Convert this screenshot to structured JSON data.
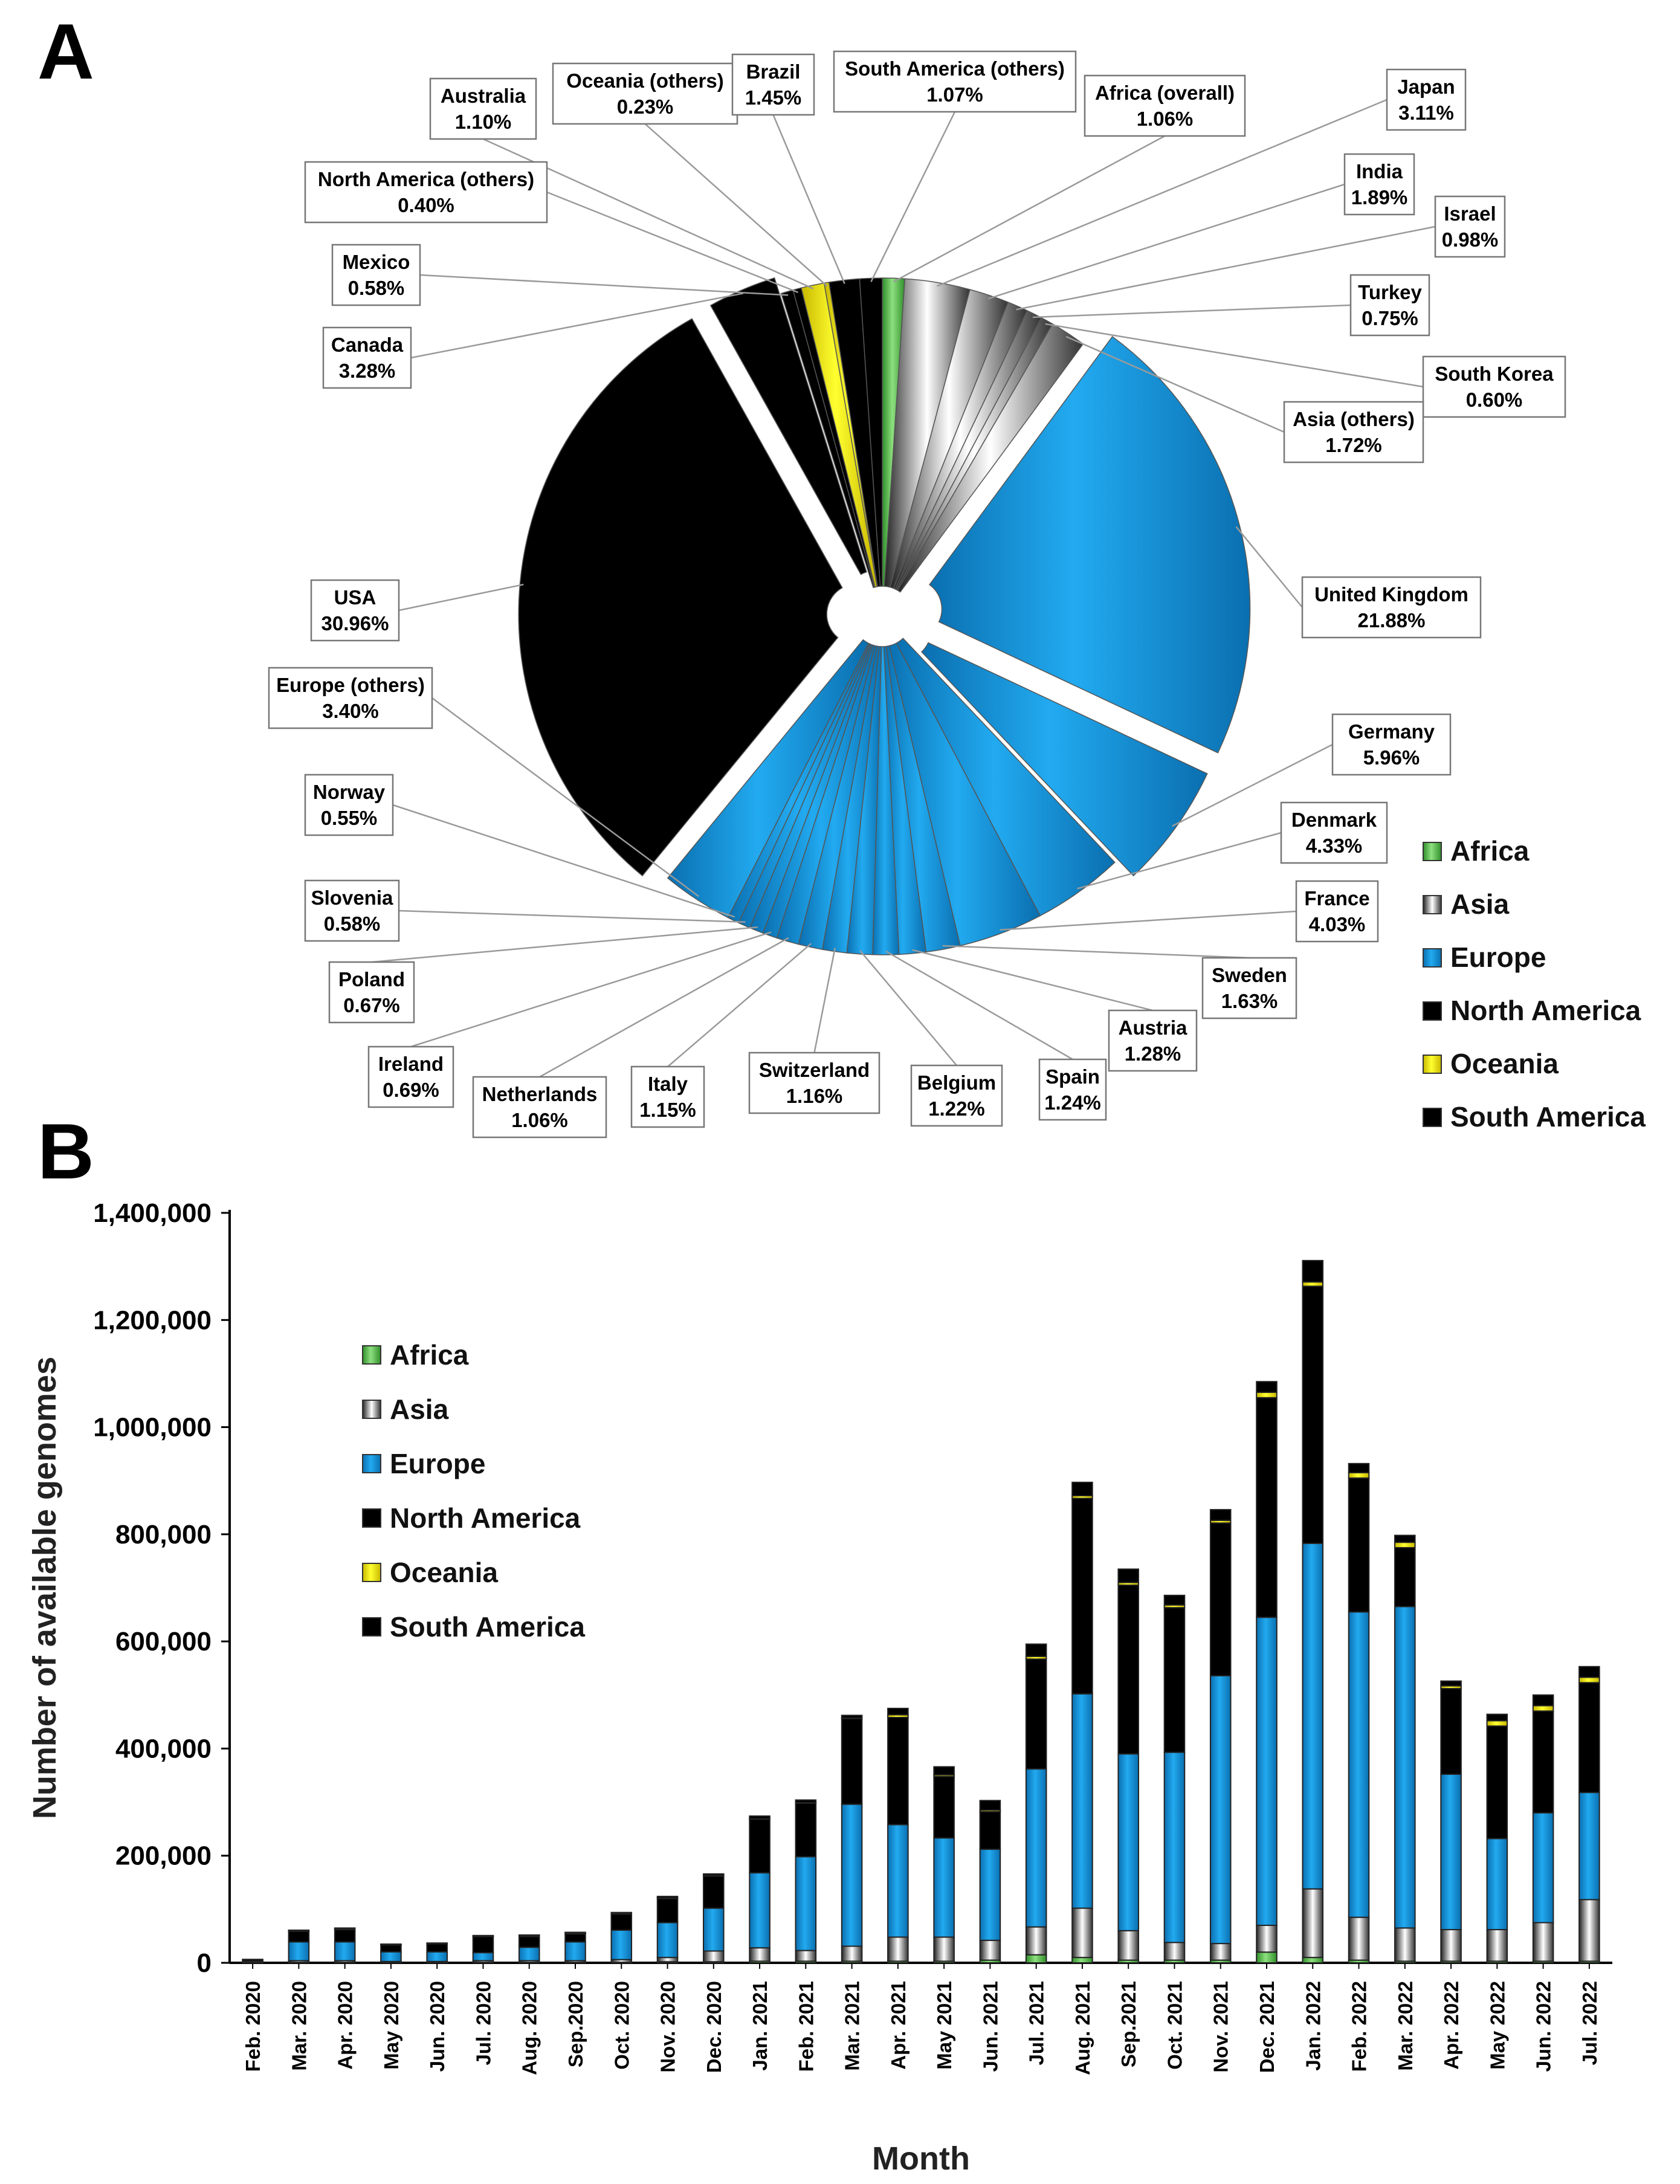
{
  "panels": {
    "a": "A",
    "b": "B"
  },
  "colors": {
    "Africa": "#55b848",
    "Asia": "#d0d0d0",
    "Europe": "#0b8fd8",
    "North America": "#e00000",
    "Oceania": "#f4ee00",
    "South America": "#f0a000"
  },
  "chart_data": [
    {
      "type": "pie",
      "title": "",
      "unit": "%",
      "slices": [
        {
          "label": "Africa (overall)",
          "value": 1.06,
          "region": "Africa"
        },
        {
          "label": "Japan",
          "value": 3.11,
          "region": "Asia"
        },
        {
          "label": "India",
          "value": 1.89,
          "region": "Asia"
        },
        {
          "label": "Israel",
          "value": 0.98,
          "region": "Asia"
        },
        {
          "label": "Turkey",
          "value": 0.75,
          "region": "Asia"
        },
        {
          "label": "South Korea",
          "value": 0.6,
          "region": "Asia"
        },
        {
          "label": "Asia (others)",
          "value": 1.72,
          "region": "Asia"
        },
        {
          "label": "United Kingdom",
          "value": 21.88,
          "region": "Europe"
        },
        {
          "label": "Germany",
          "value": 5.96,
          "region": "Europe"
        },
        {
          "label": "Denmark",
          "value": 4.33,
          "region": "Europe"
        },
        {
          "label": "France",
          "value": 4.03,
          "region": "Europe"
        },
        {
          "label": "Sweden",
          "value": 1.63,
          "region": "Europe"
        },
        {
          "label": "Austria",
          "value": 1.28,
          "region": "Europe"
        },
        {
          "label": "Spain",
          "value": 1.24,
          "region": "Europe"
        },
        {
          "label": "Belgium",
          "value": 1.22,
          "region": "Europe"
        },
        {
          "label": "Switzerland",
          "value": 1.16,
          "region": "Europe"
        },
        {
          "label": "Italy",
          "value": 1.15,
          "region": "Europe"
        },
        {
          "label": "Netherlands",
          "value": 1.06,
          "region": "Europe"
        },
        {
          "label": "Ireland",
          "value": 0.69,
          "region": "Europe"
        },
        {
          "label": "Poland",
          "value": 0.67,
          "region": "Europe"
        },
        {
          "label": "Slovenia",
          "value": 0.58,
          "region": "Europe"
        },
        {
          "label": "Norway",
          "value": 0.55,
          "region": "Europe"
        },
        {
          "label": "Europe (others)",
          "value": 3.4,
          "region": "Europe"
        },
        {
          "label": "USA",
          "value": 30.96,
          "region": "North America"
        },
        {
          "label": "Canada",
          "value": 3.28,
          "region": "North America"
        },
        {
          "label": "Mexico",
          "value": 0.58,
          "region": "North America"
        },
        {
          "label": "North America (others)",
          "value": 0.4,
          "region": "North America"
        },
        {
          "label": "Australia",
          "value": 1.1,
          "region": "Oceania"
        },
        {
          "label": "Oceania (others)",
          "value": 0.23,
          "region": "Oceania"
        },
        {
          "label": "Brazil",
          "value": 1.45,
          "region": "South America"
        },
        {
          "label": "South America (others)",
          "value": 1.07,
          "region": "South America"
        }
      ],
      "legend": [
        "Africa",
        "Asia",
        "Europe",
        "North America",
        "Oceania",
        "South America"
      ]
    },
    {
      "type": "bar",
      "stacked": true,
      "xlabel": "Month",
      "ylabel": "Number of available genomes",
      "ylim": [
        0,
        1400000
      ],
      "yticks": [
        0,
        200000,
        400000,
        600000,
        800000,
        1000000,
        1200000,
        1400000
      ],
      "ytick_labels": [
        "0",
        "200,000",
        "400,000",
        "600,000",
        "800,000",
        "1,000,000",
        "1,200,000",
        "1,400,000"
      ],
      "categories": [
        "Feb. 2020",
        "Mar. 2020",
        "Apr. 2020",
        "May 2020",
        "Jun. 2020",
        "Jul. 2020",
        "Aug. 2020",
        "Sep.2020",
        "Oct. 2020",
        "Nov. 2020",
        "Dec. 2020",
        "Jan. 2021",
        "Feb. 2021",
        "Mar. 2021",
        "Apr. 2021",
        "May 2021",
        "Jun. 2021",
        "Jul. 2021",
        "Aug. 2021",
        "Sep.2021",
        "Oct. 2021",
        "Nov. 2021",
        "Dec. 2021",
        "Jan. 2022",
        "Feb. 2022",
        "Mar. 2022",
        "Apr. 2022",
        "May 2022",
        "Jun. 2022",
        "Jul. 2022"
      ],
      "series": [
        {
          "name": "Africa",
          "values": [
            200,
            1000,
            1000,
            500,
            500,
            1000,
            1000,
            1000,
            1000,
            2000,
            2000,
            3000,
            3000,
            3000,
            3000,
            3000,
            5000,
            15000,
            10000,
            5000,
            5000,
            5000,
            20000,
            10000,
            5000,
            3000,
            3000,
            3000,
            3000,
            3000
          ]
        },
        {
          "name": "Asia",
          "values": [
            2000,
            3000,
            3000,
            2000,
            2000,
            3000,
            3000,
            3000,
            5000,
            8000,
            20000,
            25000,
            20000,
            28000,
            45000,
            45000,
            37000,
            52000,
            92000,
            55000,
            33000,
            31000,
            50000,
            128000,
            80000,
            62000,
            59000,
            59000,
            72000,
            115000
          ]
        },
        {
          "name": "Europe",
          "values": [
            1000,
            35000,
            35000,
            18000,
            18000,
            15000,
            25000,
            35000,
            55000,
            65000,
            80000,
            140000,
            175000,
            265000,
            210000,
            185000,
            170000,
            295000,
            400000,
            330000,
            355000,
            500000,
            575000,
            645000,
            570000,
            600000,
            290000,
            170000,
            205000,
            200000
          ]
        },
        {
          "name": "North America",
          "values": [
            3000,
            20000,
            23000,
            13000,
            15000,
            30000,
            20000,
            15000,
            30000,
            45000,
            60000,
            100000,
            100000,
            160000,
            200000,
            115000,
            70000,
            205000,
            365000,
            315000,
            270000,
            285000,
            410000,
            480000,
            250000,
            110000,
            160000,
            210000,
            190000,
            205000
          ]
        },
        {
          "name": "Oceania",
          "values": [
            100,
            1000,
            1000,
            500,
            500,
            1000,
            1000,
            1000,
            1000,
            1000,
            1000,
            1000,
            1000,
            1000,
            5000,
            3000,
            3000,
            5000,
            5000,
            5000,
            5000,
            5000,
            10000,
            8000,
            10000,
            10000,
            5000,
            10000,
            10000,
            10000
          ]
        },
        {
          "name": "South America",
          "values": [
            100,
            1000,
            2000,
            1000,
            1000,
            1000,
            2000,
            2000,
            2000,
            3000,
            3000,
            5000,
            5000,
            5000,
            12000,
            15000,
            18000,
            23000,
            25000,
            25000,
            18000,
            20000,
            20000,
            40000,
            17000,
            13000,
            9000,
            12000,
            20000,
            20000
          ]
        }
      ],
      "legend": [
        "Africa",
        "Asia",
        "Europe",
        "North America",
        "Oceania",
        "South America"
      ]
    }
  ]
}
